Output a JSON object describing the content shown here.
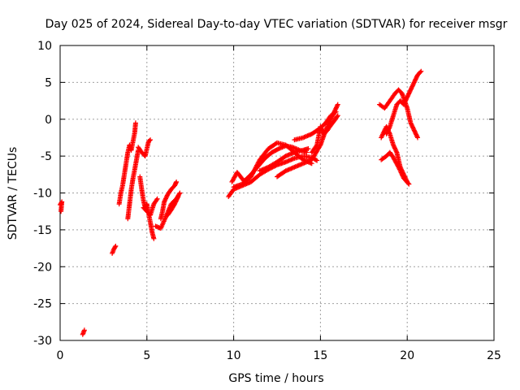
{
  "chart_data": {
    "type": "scatter",
    "title": "Day 025 of 2024, Sidereal Day-to-day VTEC variation (SDTVAR) for receiver msgr",
    "xlabel": "GPS time / hours",
    "ylabel": "SDTVAR / TECUs",
    "xlim": [
      0,
      25
    ],
    "ylim": [
      -30,
      10
    ],
    "xticks": [
      "0",
      "5",
      "10",
      "15",
      "20",
      "25"
    ],
    "yticks": [
      "10",
      "5",
      "0",
      "-5",
      "-10",
      "-15",
      "-20",
      "-25",
      "-30"
    ],
    "grid": true,
    "marker": "+",
    "color": "#ff0000",
    "series": [
      {
        "segments": [
          [
            [
              0.0,
              -11.6
            ],
            [
              0.1,
              -11.2
            ],
            [
              0.05,
              -12.5
            ]
          ],
          [
            [
              1.3,
              -29.2
            ],
            [
              1.4,
              -28.6
            ]
          ],
          [
            [
              3.0,
              -18.2
            ],
            [
              3.1,
              -17.6
            ],
            [
              3.2,
              -17.2
            ]
          ],
          [
            [
              3.4,
              -11.5
            ],
            [
              3.5,
              -10.0
            ],
            [
              3.6,
              -9.0
            ],
            [
              3.7,
              -7.5
            ],
            [
              3.8,
              -6.0
            ],
            [
              3.9,
              -4.5
            ],
            [
              4.0,
              -3.5
            ],
            [
              4.1,
              -4.2
            ],
            [
              4.2,
              -3.0
            ],
            [
              4.3,
              -1.8
            ],
            [
              4.35,
              -0.5
            ]
          ],
          [
            [
              3.9,
              -13.5
            ],
            [
              4.0,
              -11.5
            ],
            [
              4.1,
              -9.5
            ],
            [
              4.2,
              -8.0
            ],
            [
              4.3,
              -6.8
            ],
            [
              4.4,
              -5.5
            ],
            [
              4.5,
              -4.2
            ]
          ],
          [
            [
              4.6,
              -7.8
            ],
            [
              4.7,
              -9.5
            ],
            [
              4.8,
              -11.0
            ],
            [
              4.9,
              -12.0
            ],
            [
              5.0,
              -11.5
            ],
            [
              5.1,
              -12.8
            ],
            [
              5.2,
              -14.0
            ],
            [
              5.3,
              -15.3
            ],
            [
              5.4,
              -16.2
            ]
          ],
          [
            [
              4.5,
              -3.8
            ],
            [
              4.7,
              -4.5
            ],
            [
              4.9,
              -5.0
            ],
            [
              5.0,
              -4.0
            ],
            [
              5.1,
              -3.0
            ],
            [
              5.2,
              -2.8
            ]
          ],
          [
            [
              4.8,
              -12.0
            ],
            [
              5.0,
              -12.5
            ],
            [
              5.2,
              -13.0
            ],
            [
              5.4,
              -11.5
            ],
            [
              5.6,
              -10.8
            ]
          ],
          [
            [
              5.5,
              -14.5
            ],
            [
              5.8,
              -14.8
            ],
            [
              6.1,
              -13.2
            ],
            [
              6.4,
              -11.5
            ],
            [
              6.7,
              -10.8
            ],
            [
              6.9,
              -10.0
            ]
          ],
          [
            [
              5.8,
              -13.5
            ],
            [
              5.9,
              -12.5
            ],
            [
              6.0,
              -11.2
            ],
            [
              6.2,
              -10.2
            ],
            [
              6.4,
              -9.5
            ],
            [
              6.6,
              -9.0
            ],
            [
              6.7,
              -8.5
            ]
          ],
          [
            [
              6.2,
              -13.0
            ],
            [
              6.4,
              -12.3
            ],
            [
              6.6,
              -11.5
            ],
            [
              6.8,
              -10.5
            ]
          ],
          [
            [
              9.7,
              -10.5
            ],
            [
              10.0,
              -9.5
            ],
            [
              10.5,
              -9.0
            ],
            [
              11.0,
              -8.5
            ],
            [
              11.5,
              -7.5
            ],
            [
              12.0,
              -6.8
            ],
            [
              12.5,
              -6.2
            ],
            [
              13.0,
              -5.8
            ],
            [
              13.5,
              -5.3
            ],
            [
              14.0,
              -5.0
            ],
            [
              14.5,
              -5.2
            ],
            [
              14.8,
              -5.6
            ]
          ],
          [
            [
              9.9,
              -8.5
            ],
            [
              10.2,
              -7.2
            ],
            [
              10.6,
              -8.4
            ],
            [
              11.0,
              -7.5
            ],
            [
              11.4,
              -6.4
            ],
            [
              11.8,
              -5.3
            ],
            [
              12.2,
              -4.5
            ],
            [
              12.6,
              -4.0
            ],
            [
              13.0,
              -3.6
            ],
            [
              13.4,
              -3.8
            ],
            [
              13.8,
              -4.2
            ],
            [
              14.2,
              -4.5
            ]
          ],
          [
            [
              10.0,
              -9.2
            ],
            [
              10.5,
              -8.8
            ],
            [
              11.0,
              -7.8
            ],
            [
              11.5,
              -5.5
            ],
            [
              12.0,
              -4.0
            ],
            [
              12.5,
              -3.2
            ],
            [
              13.0,
              -3.5
            ],
            [
              13.5,
              -4.5
            ],
            [
              14.0,
              -5.5
            ],
            [
              14.5,
              -6.0
            ]
          ],
          [
            [
              11.5,
              -7.0
            ],
            [
              12.0,
              -6.5
            ],
            [
              12.5,
              -5.8
            ],
            [
              13.0,
              -5.0
            ],
            [
              13.5,
              -4.5
            ],
            [
              14.0,
              -4.2
            ],
            [
              14.3,
              -4.0
            ]
          ],
          [
            [
              12.5,
              -7.8
            ],
            [
              13.0,
              -7.0
            ],
            [
              13.5,
              -6.5
            ],
            [
              14.0,
              -6.0
            ],
            [
              14.5,
              -5.5
            ],
            [
              15.0,
              -3.5
            ],
            [
              15.3,
              -1.5
            ],
            [
              15.6,
              0.0
            ],
            [
              15.8,
              1.0
            ],
            [
              16.0,
              2.0
            ]
          ],
          [
            [
              13.5,
              -2.8
            ],
            [
              14.0,
              -2.5
            ],
            [
              14.5,
              -2.0
            ],
            [
              15.0,
              -1.2
            ],
            [
              15.3,
              -0.5
            ],
            [
              15.6,
              0.5
            ],
            [
              15.9,
              1.0
            ]
          ],
          [
            [
              14.5,
              -4.5
            ],
            [
              14.8,
              -3.5
            ],
            [
              15.0,
              -1.0
            ],
            [
              15.2,
              -2.0
            ],
            [
              15.4,
              -1.5
            ],
            [
              15.6,
              -0.8
            ],
            [
              15.8,
              -0.2
            ],
            [
              16.0,
              0.5
            ]
          ],
          [
            [
              18.4,
              2.0
            ],
            [
              18.7,
              1.5
            ],
            [
              19.0,
              2.5
            ],
            [
              19.3,
              3.5
            ],
            [
              19.5,
              4.0
            ],
            [
              19.7,
              3.5
            ],
            [
              20.0,
              1.5
            ],
            [
              20.2,
              -0.5
            ],
            [
              20.4,
              -1.5
            ],
            [
              20.6,
              -2.5
            ]
          ],
          [
            [
              18.8,
              -2.0
            ],
            [
              19.0,
              -1.0
            ],
            [
              19.2,
              0.5
            ],
            [
              19.4,
              2.0
            ],
            [
              19.6,
              2.5
            ],
            [
              19.8,
              2.0
            ],
            [
              20.0,
              3.0
            ],
            [
              20.2,
              4.0
            ],
            [
              20.4,
              5.0
            ],
            [
              20.6,
              6.0
            ],
            [
              20.8,
              6.5
            ]
          ],
          [
            [
              18.5,
              -5.5
            ],
            [
              18.8,
              -5.0
            ],
            [
              19.0,
              -4.5
            ],
            [
              19.2,
              -5.2
            ],
            [
              19.5,
              -6.5
            ],
            [
              19.8,
              -8.0
            ],
            [
              20.1,
              -8.8
            ]
          ],
          [
            [
              18.5,
              -2.5
            ],
            [
              18.8,
              -1.0
            ],
            [
              19.0,
              -2.0
            ],
            [
              19.2,
              -3.5
            ],
            [
              19.4,
              -4.5
            ],
            [
              19.6,
              -6.5
            ],
            [
              19.8,
              -7.5
            ],
            [
              20.0,
              -8.5
            ]
          ]
        ]
      }
    ]
  }
}
